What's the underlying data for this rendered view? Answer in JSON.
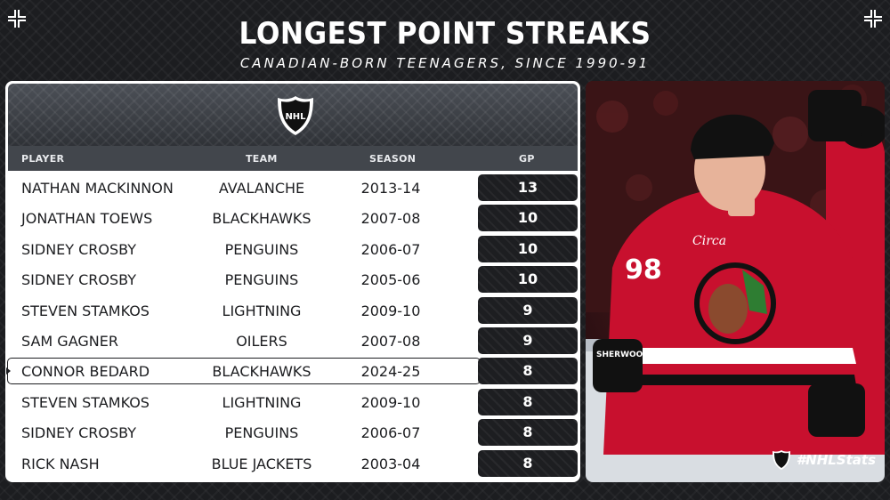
{
  "header": {
    "title": "LONGEST POINT STREAKS",
    "subtitle": "CANADIAN-BORN TEENAGERS, SINCE 1990-91"
  },
  "columns": {
    "player": "PLAYER",
    "team": "TEAM",
    "season": "SEASON",
    "gp": "GP"
  },
  "rows": [
    {
      "player": "NATHAN MACKINNON",
      "team": "AVALANCHE",
      "season": "2013-14",
      "gp": "13"
    },
    {
      "player": "JONATHAN TOEWS",
      "team": "BLACKHAWKS",
      "season": "2007-08",
      "gp": "10"
    },
    {
      "player": "SIDNEY CROSBY",
      "team": "PENGUINS",
      "season": "2006-07",
      "gp": "10"
    },
    {
      "player": "SIDNEY CROSBY",
      "team": "PENGUINS",
      "season": "2005-06",
      "gp": "10"
    },
    {
      "player": "STEVEN STAMKOS",
      "team": "LIGHTNING",
      "season": "2009-10",
      "gp": "9"
    },
    {
      "player": "SAM GAGNER",
      "team": "OILERS",
      "season": "2007-08",
      "gp": "9"
    },
    {
      "player": "CONNOR BEDARD",
      "team": "BLACKHAWKS",
      "season": "2024-25",
      "gp": "8"
    },
    {
      "player": "STEVEN STAMKOS",
      "team": "LIGHTNING",
      "season": "2009-10",
      "gp": "8"
    },
    {
      "player": "SIDNEY CROSBY",
      "team": "PENGUINS",
      "season": "2006-07",
      "gp": "8"
    },
    {
      "player": "RICK NASH",
      "team": "BLUE JACKETS",
      "season": "2003-04",
      "gp": "8"
    }
  ],
  "highlighted_row": 6,
  "photo": {
    "jersey_number": "98",
    "sponsor": "Circa",
    "stick_brand": "SHERWOOD"
  },
  "branding": {
    "logo_text": "NHL",
    "hashtag": "#NHLStats"
  },
  "colors": {
    "background": "#1c1d20",
    "panel": "#ffffff",
    "gp_box": "#1d1e21",
    "jersey_red": "#c8102e"
  }
}
